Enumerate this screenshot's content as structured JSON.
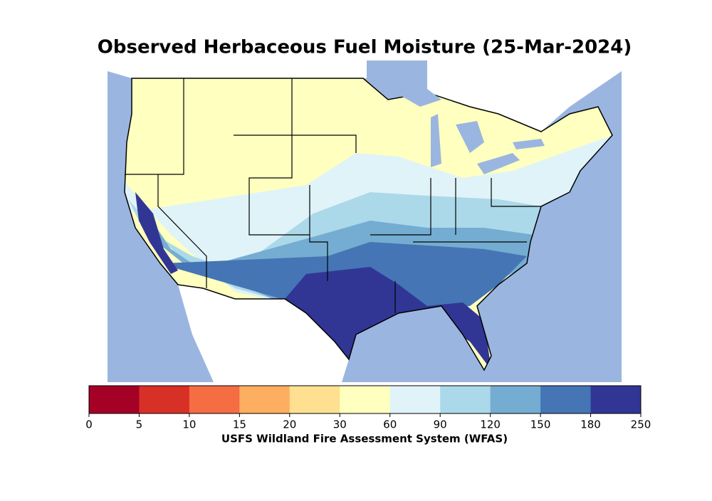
{
  "title": "Observed Herbaceous Fuel Moisture (25-Mar-2024)",
  "colorbar": {
    "ticks": [
      0,
      5,
      10,
      15,
      20,
      30,
      60,
      90,
      120,
      150,
      180,
      250
    ],
    "colors": [
      "#a50026",
      "#d73027",
      "#f46d43",
      "#fdae61",
      "#fee090",
      "#ffffbf",
      "#e0f3f8",
      "#abd9e9",
      "#74add1",
      "#4575b4",
      "#313695"
    ],
    "label": "USFS Wildland Fire Assessment System (WFAS)"
  }
}
